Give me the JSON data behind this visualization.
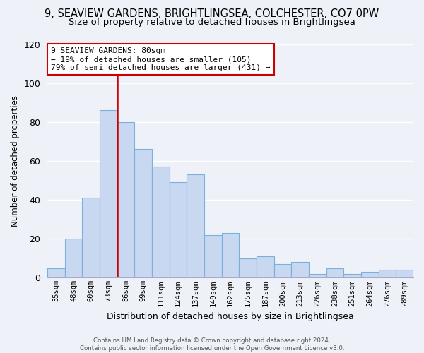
{
  "title": "9, SEAVIEW GARDENS, BRIGHTLINGSEA, COLCHESTER, CO7 0PW",
  "subtitle": "Size of property relative to detached houses in Brightlingsea",
  "xlabel": "Distribution of detached houses by size in Brightlingsea",
  "ylabel": "Number of detached properties",
  "categories": [
    "35sqm",
    "48sqm",
    "60sqm",
    "73sqm",
    "86sqm",
    "99sqm",
    "111sqm",
    "124sqm",
    "137sqm",
    "149sqm",
    "162sqm",
    "175sqm",
    "187sqm",
    "200sqm",
    "213sqm",
    "226sqm",
    "238sqm",
    "251sqm",
    "264sqm",
    "276sqm",
    "289sqm"
  ],
  "values": [
    5,
    20,
    41,
    86,
    80,
    66,
    57,
    49,
    53,
    22,
    23,
    10,
    11,
    7,
    8,
    2,
    5,
    2,
    3,
    4,
    4
  ],
  "bar_color": "#c8d8f0",
  "bar_edge_color": "#7ab0dd",
  "vline_color": "#cc0000",
  "vline_x_index": 3.5,
  "annotation_line1": "9 SEAVIEW GARDENS: 80sqm",
  "annotation_line2": "← 19% of detached houses are smaller (105)",
  "annotation_line3": "79% of semi-detached houses are larger (431) →",
  "annotation_box_color": "#ffffff",
  "annotation_box_edge": "#cc0000",
  "ylim": [
    0,
    120
  ],
  "yticks": [
    0,
    20,
    40,
    60,
    80,
    100,
    120
  ],
  "footer1": "Contains HM Land Registry data © Crown copyright and database right 2024.",
  "footer2": "Contains public sector information licensed under the Open Government Licence v3.0.",
  "bg_color": "#eef2f8",
  "title_fontsize": 10.5,
  "subtitle_fontsize": 9.5,
  "grid_color": "#ffffff",
  "spine_color": "#aaaacc"
}
